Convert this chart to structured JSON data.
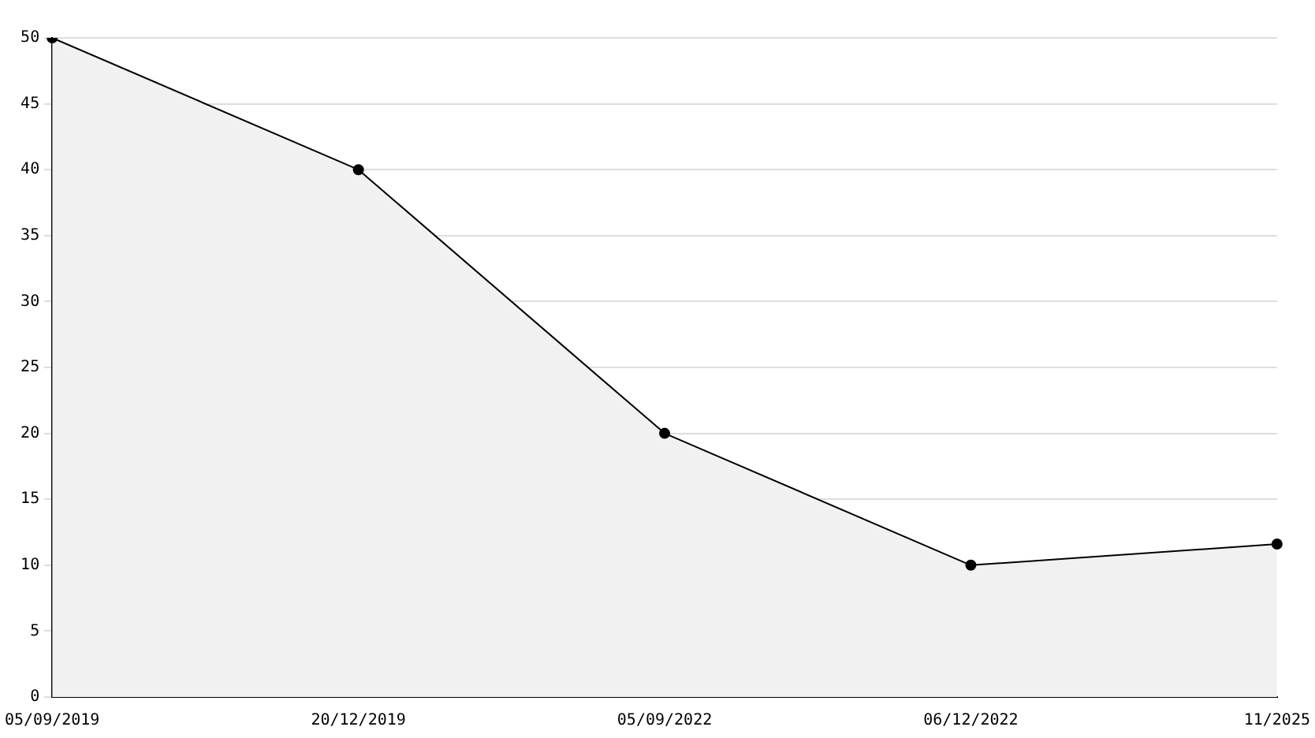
{
  "chart_data": {
    "type": "area",
    "categories": [
      "05/09/2019",
      "20/12/2019",
      "05/09/2022",
      "06/12/2022",
      "11/2025"
    ],
    "series": [
      {
        "color": "#000000",
        "values": [
          50,
          40,
          20,
          10,
          11.6
        ]
      }
    ],
    "ylim": [
      0,
      50
    ],
    "yticks": [
      0,
      5,
      10,
      15,
      20,
      25,
      30,
      35,
      40,
      45,
      50
    ],
    "grid": "y",
    "legend": false,
    "marker": "circle",
    "line_style": "solid"
  }
}
